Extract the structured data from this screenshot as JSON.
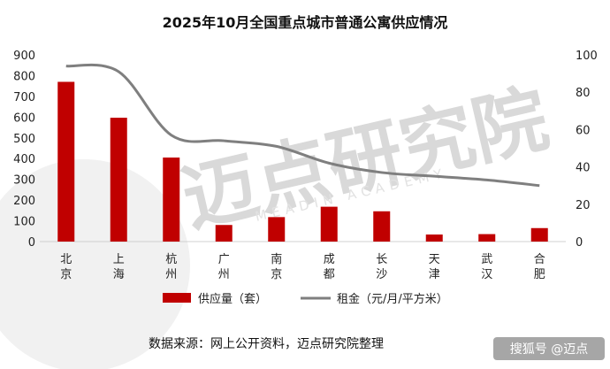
{
  "chart_data": {
    "type": "bar",
    "title": "2025年10月全国重点城市普通公寓供应情况",
    "categories": [
      "北京",
      "上海",
      "杭州",
      "广州",
      "南京",
      "成都",
      "长沙",
      "天津",
      "武汉",
      "合肥"
    ],
    "series": [
      {
        "name": "供应量（套）",
        "type": "bar",
        "axis": "left",
        "color": "#c00000",
        "values": [
          770,
          597,
          405,
          80,
          118,
          168,
          146,
          34,
          36,
          65
        ]
      },
      {
        "name": "租金（元/月/平方米）",
        "type": "line",
        "axis": "right",
        "color": "#7f7f7f",
        "values": [
          94,
          91,
          57,
          54,
          51,
          42,
          37,
          35,
          33,
          30
        ]
      }
    ],
    "y_left": {
      "min": 0,
      "max": 900,
      "ticks": [
        0,
        100,
        200,
        300,
        400,
        500,
        600,
        700,
        800,
        900
      ]
    },
    "y_right": {
      "min": 0,
      "max": 100,
      "ticks": [
        0,
        20,
        40,
        60,
        80,
        100
      ]
    },
    "grid": false,
    "legend_position": "bottom"
  },
  "footer": {
    "source": "数据来源：网上公开资料，迈点研究院整理"
  },
  "watermark": {
    "main": "迈点研究院",
    "sub": "MEADIN ACADEMY"
  },
  "credit": {
    "text": "搜狐号 @迈点"
  }
}
